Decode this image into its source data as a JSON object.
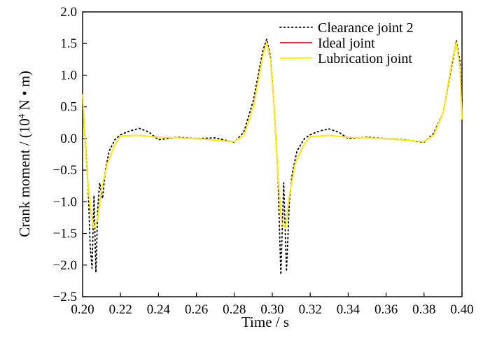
{
  "chart_data": {
    "type": "line",
    "xlabel": "Time / s",
    "ylabel_main": "Crank moment / (10",
    "ylabel_sup": "4",
    "ylabel_tail": " N • m)",
    "xlim": [
      0.2,
      0.4
    ],
    "ylim": [
      -2.5,
      2.0
    ],
    "x_ticks": [
      0.2,
      0.22,
      0.24,
      0.26,
      0.28,
      0.3,
      0.32,
      0.34,
      0.36,
      0.38,
      0.4
    ],
    "x_tick_labels": [
      "0.20",
      "0.22",
      "0.24",
      "0.26",
      "0.28",
      "0.30",
      "0.32",
      "0.34",
      "0.36",
      "0.38",
      "0.40"
    ],
    "y_ticks": [
      2.0,
      1.5,
      1.0,
      0.5,
      0.0,
      -0.5,
      -1.0,
      -1.5,
      -2.0,
      -2.5
    ],
    "y_tick_labels": [
      "2.0",
      "1.5",
      "1.0",
      "0.5",
      "0.0",
      "−0.5",
      "−1.0",
      "−1.5",
      "−2.0",
      "−2.5"
    ],
    "legend_position": "top-right",
    "series": [
      {
        "name": "Clearance joint 2",
        "style": "dotted",
        "color": "#000000",
        "points": [
          [
            0.2,
            0.62
          ],
          [
            0.2015,
            -0.1
          ],
          [
            0.203,
            -0.8
          ],
          [
            0.204,
            -1.7
          ],
          [
            0.205,
            -2.05
          ],
          [
            0.206,
            -0.9
          ],
          [
            0.207,
            -2.12
          ],
          [
            0.208,
            -1.1
          ],
          [
            0.209,
            -0.7
          ],
          [
            0.2105,
            -0.95
          ],
          [
            0.212,
            -0.5
          ],
          [
            0.214,
            -0.2
          ],
          [
            0.217,
            -0.02
          ],
          [
            0.22,
            0.06
          ],
          [
            0.225,
            0.12
          ],
          [
            0.23,
            0.16
          ],
          [
            0.235,
            0.1
          ],
          [
            0.24,
            -0.02
          ],
          [
            0.245,
            0.0
          ],
          [
            0.25,
            0.02
          ],
          [
            0.26,
            0.0
          ],
          [
            0.27,
            0.01
          ],
          [
            0.28,
            -0.06
          ],
          [
            0.285,
            0.1
          ],
          [
            0.29,
            0.6
          ],
          [
            0.295,
            1.38
          ],
          [
            0.297,
            1.57
          ],
          [
            0.299,
            1.3
          ],
          [
            0.301,
            0.5
          ],
          [
            0.303,
            -0.6
          ],
          [
            0.3045,
            -2.15
          ],
          [
            0.306,
            -0.7
          ],
          [
            0.3075,
            -2.1
          ],
          [
            0.309,
            -1.0
          ],
          [
            0.3105,
            -0.55
          ],
          [
            0.313,
            -0.2
          ],
          [
            0.317,
            0.0
          ],
          [
            0.32,
            0.06
          ],
          [
            0.325,
            0.12
          ],
          [
            0.33,
            0.15
          ],
          [
            0.335,
            0.1
          ],
          [
            0.34,
            0.0
          ],
          [
            0.35,
            0.02
          ],
          [
            0.36,
            0.0
          ],
          [
            0.37,
            -0.02
          ],
          [
            0.38,
            -0.06
          ],
          [
            0.385,
            0.08
          ],
          [
            0.39,
            0.4
          ],
          [
            0.395,
            1.2
          ],
          [
            0.397,
            1.55
          ],
          [
            0.399,
            1.2
          ],
          [
            0.4,
            0.6
          ]
        ]
      },
      {
        "name": "Ideal joint",
        "style": "solid",
        "color": "#e0141e",
        "points": [
          [
            0.2,
            0.7
          ],
          [
            0.202,
            -0.4
          ],
          [
            0.204,
            -1.1
          ],
          [
            0.206,
            -1.42
          ],
          [
            0.208,
            -1.25
          ],
          [
            0.21,
            -0.8
          ],
          [
            0.213,
            -0.4
          ],
          [
            0.217,
            -0.1
          ],
          [
            0.22,
            0.04
          ],
          [
            0.23,
            0.05
          ],
          [
            0.24,
            0.02
          ],
          [
            0.26,
            0.0
          ],
          [
            0.28,
            -0.05
          ],
          [
            0.285,
            0.05
          ],
          [
            0.29,
            0.5
          ],
          [
            0.295,
            1.3
          ],
          [
            0.297,
            1.52
          ],
          [
            0.299,
            1.25
          ],
          [
            0.301,
            0.5
          ],
          [
            0.303,
            -0.6
          ],
          [
            0.305,
            -1.35
          ],
          [
            0.307,
            -1.4
          ],
          [
            0.309,
            -0.9
          ],
          [
            0.312,
            -0.4
          ],
          [
            0.317,
            -0.08
          ],
          [
            0.32,
            0.03
          ],
          [
            0.33,
            0.05
          ],
          [
            0.34,
            0.02
          ],
          [
            0.36,
            0.0
          ],
          [
            0.38,
            -0.05
          ],
          [
            0.385,
            0.05
          ],
          [
            0.39,
            0.4
          ],
          [
            0.395,
            1.25
          ],
          [
            0.397,
            1.52
          ],
          [
            0.399,
            1.1
          ],
          [
            0.4,
            0.3
          ]
        ]
      },
      {
        "name": "Lubrication joint",
        "style": "solid",
        "color": "#ffee00",
        "points": [
          [
            0.2,
            0.7
          ],
          [
            0.202,
            -0.4
          ],
          [
            0.204,
            -1.1
          ],
          [
            0.206,
            -1.42
          ],
          [
            0.208,
            -1.25
          ],
          [
            0.21,
            -0.8
          ],
          [
            0.213,
            -0.4
          ],
          [
            0.217,
            -0.1
          ],
          [
            0.22,
            0.04
          ],
          [
            0.23,
            0.05
          ],
          [
            0.24,
            0.02
          ],
          [
            0.26,
            0.0
          ],
          [
            0.28,
            -0.05
          ],
          [
            0.285,
            0.05
          ],
          [
            0.29,
            0.5
          ],
          [
            0.295,
            1.3
          ],
          [
            0.297,
            1.52
          ],
          [
            0.299,
            1.25
          ],
          [
            0.301,
            0.5
          ],
          [
            0.303,
            -0.6
          ],
          [
            0.305,
            -1.35
          ],
          [
            0.307,
            -1.4
          ],
          [
            0.309,
            -0.9
          ],
          [
            0.312,
            -0.4
          ],
          [
            0.317,
            -0.08
          ],
          [
            0.32,
            0.03
          ],
          [
            0.33,
            0.05
          ],
          [
            0.34,
            0.02
          ],
          [
            0.36,
            0.0
          ],
          [
            0.38,
            -0.05
          ],
          [
            0.385,
            0.05
          ],
          [
            0.39,
            0.4
          ],
          [
            0.395,
            1.25
          ],
          [
            0.397,
            1.52
          ],
          [
            0.399,
            1.1
          ],
          [
            0.4,
            0.3
          ]
        ]
      }
    ]
  }
}
